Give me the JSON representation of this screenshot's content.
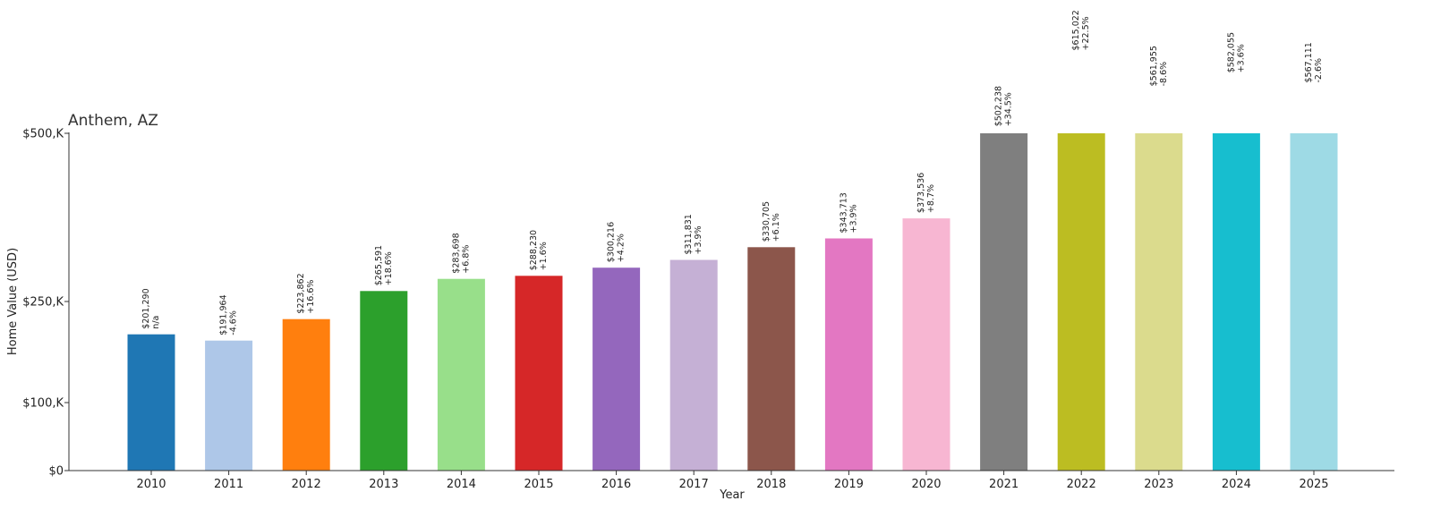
{
  "chart_data": {
    "type": "bar",
    "title": "Anthem, AZ",
    "xlabel": "Year",
    "ylabel": "Home Value (USD)",
    "ylim": [
      0,
      500000
    ],
    "yticks": [
      {
        "value": 0,
        "label": "$0"
      },
      {
        "value": 100000,
        "label": "$100,K"
      },
      {
        "value": 250000,
        "label": "$250,K"
      },
      {
        "value": 500000,
        "label": "$500,K"
      }
    ],
    "categories": [
      "2010",
      "2011",
      "2012",
      "2013",
      "2014",
      "2015",
      "2016",
      "2017",
      "2018",
      "2019",
      "2020",
      "2021",
      "2022",
      "2023",
      "2024",
      "2025"
    ],
    "values": [
      201290,
      191964,
      223862,
      265591,
      283698,
      288230,
      300216,
      311831,
      330705,
      343713,
      373536,
      502238,
      615022,
      561955,
      582055,
      567111
    ],
    "value_labels": [
      "$201,290",
      "$191,964",
      "$223,862",
      "$265,591",
      "$283,698",
      "$288,230",
      "$300,216",
      "$311,831",
      "$330,705",
      "$343,713",
      "$373,536",
      "$502,238",
      "$615,022",
      "$561,955",
      "$582,055",
      "$567,111"
    ],
    "change_labels": [
      "n/a",
      "-4.6%",
      "+16.6%",
      "+18.6%",
      "+6.8%",
      "+1.6%",
      "+4.2%",
      "+3.9%",
      "+6.1%",
      "+3.9%",
      "+8.7%",
      "+34.5%",
      "+22.5%",
      "-8.6%",
      "+3.6%",
      "-2.6%"
    ],
    "colors": [
      "#1f77b4",
      "#aec7e8",
      "#ff7f0e",
      "#2ca02c",
      "#98df8a",
      "#d62728",
      "#9467bd",
      "#c5b0d5",
      "#8c564b",
      "#e377c2",
      "#f7b6d2",
      "#7f7f7f",
      "#bcbd22",
      "#dbdb8d",
      "#17becf",
      "#9edae5"
    ]
  }
}
